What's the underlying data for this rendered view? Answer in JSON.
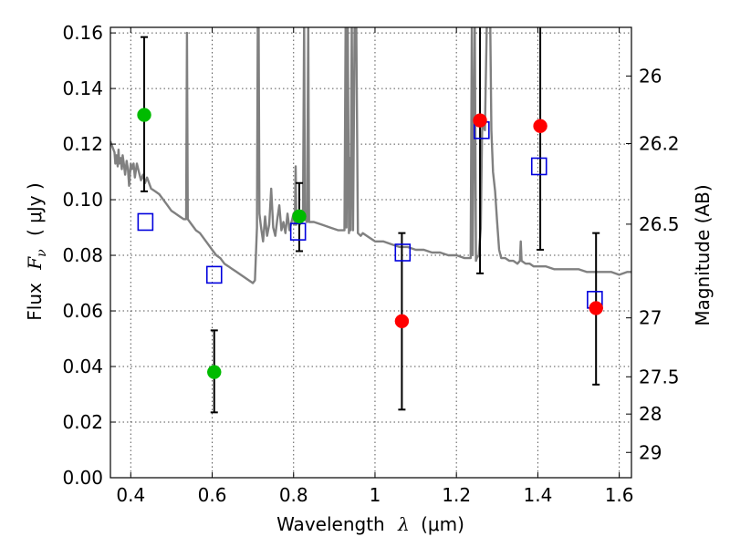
{
  "chart_data": {
    "type": "scatter",
    "xlabel_text": "Wavelength",
    "xlabel_symbol": "λ",
    "xlabel_unit": "(μm)",
    "ylabel_text": "Flux",
    "ylabel_symbol": "F",
    "ylabel_sub": "ν",
    "ylabel_unit": "( μJy )",
    "y2label": "Magnitude (AB)",
    "xlim": [
      0.35,
      1.63
    ],
    "ylim": [
      0.0,
      0.162
    ],
    "x_ticks": [
      {
        "value": 0.4,
        "label": "0.4"
      },
      {
        "value": 0.6,
        "label": "0.6"
      },
      {
        "value": 0.8,
        "label": "0.8"
      },
      {
        "value": 1.0,
        "label": "1"
      },
      {
        "value": 1.2,
        "label": "1.2"
      },
      {
        "value": 1.4,
        "label": "1.4"
      },
      {
        "value": 1.6,
        "label": "1.6"
      }
    ],
    "y_ticks": [
      {
        "value": 0.0,
        "label": "0.00"
      },
      {
        "value": 0.02,
        "label": "0.02"
      },
      {
        "value": 0.04,
        "label": "0.04"
      },
      {
        "value": 0.06,
        "label": "0.06"
      },
      {
        "value": 0.08,
        "label": "0.08"
      },
      {
        "value": 0.1,
        "label": "0.10"
      },
      {
        "value": 0.12,
        "label": "0.12"
      },
      {
        "value": 0.14,
        "label": "0.14"
      },
      {
        "value": 0.16,
        "label": "0.16"
      }
    ],
    "y2_ticks": [
      {
        "flux": 0.1445,
        "label": "26"
      },
      {
        "flux": 0.1202,
        "label": "26.2"
      },
      {
        "flux": 0.0912,
        "label": "26.5"
      },
      {
        "flux": 0.0575,
        "label": "27"
      },
      {
        "flux": 0.0363,
        "label": "27.5"
      },
      {
        "flux": 0.0229,
        "label": "28"
      },
      {
        "flux": 0.0091,
        "label": "29"
      }
    ],
    "grid": true,
    "colors": {
      "spectrum": "#808080",
      "green_points": "#00bb00",
      "red_points": "#ff0000",
      "model_squares": "#0000dd",
      "error_bars": "#000000",
      "grid": "#555555"
    },
    "spectrum": [
      [
        0.35,
        0.121
      ],
      [
        0.355,
        0.119
      ],
      [
        0.36,
        0.117
      ],
      [
        0.362,
        0.113
      ],
      [
        0.365,
        0.116
      ],
      [
        0.368,
        0.112
      ],
      [
        0.37,
        0.118
      ],
      [
        0.372,
        0.113
      ],
      [
        0.375,
        0.115
      ],
      [
        0.378,
        0.111
      ],
      [
        0.38,
        0.116
      ],
      [
        0.383,
        0.113
      ],
      [
        0.386,
        0.109
      ],
      [
        0.39,
        0.114
      ],
      [
        0.393,
        0.111
      ],
      [
        0.396,
        0.105
      ],
      [
        0.4,
        0.113
      ],
      [
        0.403,
        0.111
      ],
      [
        0.407,
        0.113
      ],
      [
        0.41,
        0.108
      ],
      [
        0.415,
        0.113
      ],
      [
        0.42,
        0.11
      ],
      [
        0.425,
        0.107
      ],
      [
        0.43,
        0.109
      ],
      [
        0.435,
        0.106
      ],
      [
        0.44,
        0.108
      ],
      [
        0.45,
        0.104
      ],
      [
        0.46,
        0.103
      ],
      [
        0.47,
        0.102
      ],
      [
        0.48,
        0.1
      ],
      [
        0.49,
        0.098
      ],
      [
        0.5,
        0.096
      ],
      [
        0.51,
        0.095
      ],
      [
        0.52,
        0.094
      ],
      [
        0.53,
        0.093
      ],
      [
        0.536,
        0.093
      ],
      [
        0.538,
        0.16
      ],
      [
        0.54,
        0.093
      ],
      [
        0.55,
        0.091
      ],
      [
        0.56,
        0.089
      ],
      [
        0.57,
        0.088
      ],
      [
        0.58,
        0.086
      ],
      [
        0.59,
        0.084
      ],
      [
        0.6,
        0.082
      ],
      [
        0.61,
        0.08
      ],
      [
        0.62,
        0.079
      ],
      [
        0.63,
        0.077
      ],
      [
        0.64,
        0.076
      ],
      [
        0.65,
        0.075
      ],
      [
        0.66,
        0.074
      ],
      [
        0.67,
        0.073
      ],
      [
        0.68,
        0.072
      ],
      [
        0.69,
        0.071
      ],
      [
        0.7,
        0.07
      ],
      [
        0.705,
        0.071
      ],
      [
        0.71,
        0.09
      ],
      [
        0.712,
        0.165
      ],
      [
        0.714,
        0.165
      ],
      [
        0.716,
        0.095
      ],
      [
        0.72,
        0.09
      ],
      [
        0.725,
        0.085
      ],
      [
        0.73,
        0.094
      ],
      [
        0.735,
        0.087
      ],
      [
        0.74,
        0.091
      ],
      [
        0.745,
        0.104
      ],
      [
        0.75,
        0.09
      ],
      [
        0.755,
        0.087
      ],
      [
        0.76,
        0.093
      ],
      [
        0.765,
        0.098
      ],
      [
        0.77,
        0.089
      ],
      [
        0.775,
        0.092
      ],
      [
        0.78,
        0.088
      ],
      [
        0.785,
        0.095
      ],
      [
        0.79,
        0.089
      ],
      [
        0.795,
        0.092
      ],
      [
        0.8,
        0.095
      ],
      [
        0.803,
        0.091
      ],
      [
        0.805,
        0.112
      ],
      [
        0.807,
        0.091
      ],
      [
        0.81,
        0.094
      ],
      [
        0.815,
        0.091
      ],
      [
        0.82,
        0.092
      ],
      [
        0.823,
        0.093
      ],
      [
        0.826,
        0.165
      ],
      [
        0.828,
        0.093
      ],
      [
        0.833,
        0.092
      ],
      [
        0.836,
        0.165
      ],
      [
        0.838,
        0.092
      ],
      [
        0.85,
        0.092
      ],
      [
        0.87,
        0.091
      ],
      [
        0.89,
        0.09
      ],
      [
        0.91,
        0.089
      ],
      [
        0.925,
        0.089
      ],
      [
        0.928,
        0.165
      ],
      [
        0.93,
        0.09
      ],
      [
        0.933,
        0.165
      ],
      [
        0.936,
        0.088
      ],
      [
        0.938,
        0.115
      ],
      [
        0.94,
        0.089
      ],
      [
        0.943,
        0.165
      ],
      [
        0.946,
        0.089
      ],
      [
        0.95,
        0.165
      ],
      [
        0.954,
        0.165
      ],
      [
        0.958,
        0.088
      ],
      [
        0.965,
        0.087
      ],
      [
        0.97,
        0.088
      ],
      [
        0.98,
        0.087
      ],
      [
        0.99,
        0.086
      ],
      [
        1.0,
        0.085
      ],
      [
        1.02,
        0.085
      ],
      [
        1.04,
        0.084
      ],
      [
        1.06,
        0.083
      ],
      [
        1.08,
        0.083
      ],
      [
        1.1,
        0.082
      ],
      [
        1.12,
        0.082
      ],
      [
        1.14,
        0.081
      ],
      [
        1.16,
        0.081
      ],
      [
        1.18,
        0.08
      ],
      [
        1.2,
        0.08
      ],
      [
        1.22,
        0.079
      ],
      [
        1.235,
        0.079
      ],
      [
        1.238,
        0.165
      ],
      [
        1.24,
        0.08
      ],
      [
        1.245,
        0.165
      ],
      [
        1.248,
        0.078
      ],
      [
        1.25,
        0.079
      ],
      [
        1.255,
        0.08
      ],
      [
        1.26,
        0.09
      ],
      [
        1.263,
        0.124
      ],
      [
        1.265,
        0.13
      ],
      [
        1.268,
        0.126
      ],
      [
        1.27,
        0.125
      ],
      [
        1.275,
        0.165
      ],
      [
        1.28,
        0.165
      ],
      [
        1.283,
        0.165
      ],
      [
        1.286,
        0.125
      ],
      [
        1.29,
        0.11
      ],
      [
        1.295,
        0.103
      ],
      [
        1.3,
        0.092
      ],
      [
        1.305,
        0.082
      ],
      [
        1.31,
        0.079
      ],
      [
        1.32,
        0.079
      ],
      [
        1.33,
        0.078
      ],
      [
        1.34,
        0.078
      ],
      [
        1.35,
        0.077
      ],
      [
        1.356,
        0.078
      ],
      [
        1.358,
        0.085
      ],
      [
        1.36,
        0.078
      ],
      [
        1.37,
        0.077
      ],
      [
        1.38,
        0.077
      ],
      [
        1.39,
        0.076
      ],
      [
        1.4,
        0.076
      ],
      [
        1.42,
        0.076
      ],
      [
        1.44,
        0.075
      ],
      [
        1.46,
        0.075
      ],
      [
        1.48,
        0.075
      ],
      [
        1.5,
        0.075
      ],
      [
        1.52,
        0.074
      ],
      [
        1.54,
        0.074
      ],
      [
        1.56,
        0.074
      ],
      [
        1.58,
        0.074
      ],
      [
        1.6,
        0.073
      ],
      [
        1.62,
        0.074
      ],
      [
        1.63,
        0.074
      ]
    ],
    "series": [
      {
        "name": "green measurements",
        "marker": "circle",
        "color": "#00bb00",
        "points": [
          {
            "x": 0.433,
            "y": 0.1305,
            "err_low": 0.103,
            "err_high": 0.1585
          },
          {
            "x": 0.605,
            "y": 0.038,
            "err_low": 0.0235,
            "err_high": 0.053
          },
          {
            "x": 0.814,
            "y": 0.094,
            "err_low": 0.0815,
            "err_high": 0.106
          }
        ]
      },
      {
        "name": "red measurements",
        "marker": "circle",
        "color": "#ff0000",
        "points": [
          {
            "x": 1.066,
            "y": 0.0563,
            "err_low": 0.0245,
            "err_high": 0.088
          },
          {
            "x": 1.258,
            "y": 0.1285,
            "err_low": 0.0735,
            "err_high": 0.162
          },
          {
            "x": 1.406,
            "y": 0.1265,
            "err_low": 0.082,
            "err_high": 0.162
          },
          {
            "x": 1.543,
            "y": 0.061,
            "err_low": 0.0335,
            "err_high": 0.088
          }
        ]
      },
      {
        "name": "model fluxes",
        "marker": "open-square",
        "color": "#0000dd",
        "points": [
          {
            "x": 0.436,
            "y": 0.092
          },
          {
            "x": 0.605,
            "y": 0.073
          },
          {
            "x": 0.811,
            "y": 0.0885
          },
          {
            "x": 1.068,
            "y": 0.081
          },
          {
            "x": 1.262,
            "y": 0.125
          },
          {
            "x": 1.403,
            "y": 0.112
          },
          {
            "x": 1.54,
            "y": 0.064
          }
        ]
      }
    ]
  }
}
